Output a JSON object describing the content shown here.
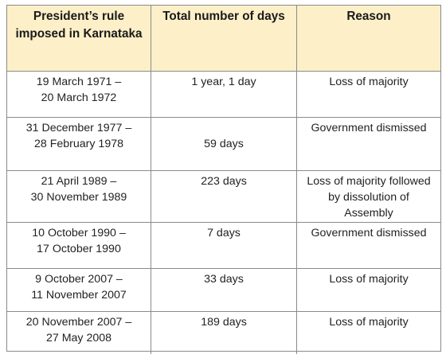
{
  "table": {
    "headers": [
      "President’s rule\nimposed in Karnataka",
      "Total number of days",
      "Reason"
    ],
    "rows": [
      {
        "period": "19 March 1971 –\n20 March 1972",
        "days": "1 year, 1 day",
        "reason": "Loss of majority"
      },
      {
        "period": "31 December 1977 –\n28 February 1978",
        "days": "59 days",
        "reason": "Government dismissed"
      },
      {
        "period": "21 April 1989 –\n30 November 1989",
        "days": "223 days",
        "reason": "Loss of majority followed\nby dissolution of\nAssembly"
      },
      {
        "period": "10 October 1990 –\n17 October 1990",
        "days": "7 days",
        "reason": "Government dismissed"
      },
      {
        "period": "9 October 2007 –\n11 November 2007",
        "days": "33 days",
        "reason": "Loss of majority"
      },
      {
        "period": "20 November 2007 –\n27 May 2008",
        "days": "189 days",
        "reason": "Loss of majority"
      }
    ]
  },
  "colors": {
    "header_bg": "#fdf0c8",
    "border": "#8a8a8a"
  }
}
